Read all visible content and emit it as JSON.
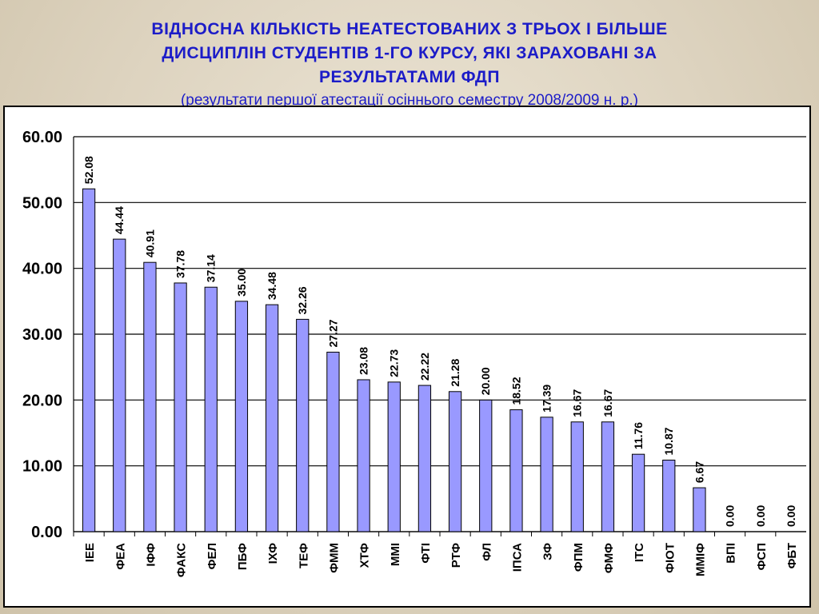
{
  "title": {
    "line1": "ВІДНОСНА  КІЛЬКІСТЬ  НЕАТЕСТОВАНИХ  З  ТРЬОХ  І  БІЛЬШЕ",
    "line2": "ДИСЦИПЛІН  СТУДЕНТІВ  1-ГО  КУРСУ,  ЯКІ  ЗАРАХОВАНІ  ЗА",
    "line3": "РЕЗУЛЬТАТАМИ  ФДП"
  },
  "subtitle": "(результати першої атестації осіннього семестру 2008/2009 н. р.)",
  "colors": {
    "title": "#1c1cc8",
    "bar_fill": "#9999ff",
    "bar_stroke": "#000000",
    "gridline": "#000000"
  },
  "chart_data": {
    "type": "bar",
    "categories": [
      "ІЕЕ",
      "ФЕА",
      "ІФФ",
      "ФАКС",
      "ФЕЛ",
      "ПБФ",
      "ІХФ",
      "ТЕФ",
      "ФММ",
      "ХТФ",
      "ММІ",
      "ФТІ",
      "РТФ",
      "ФЛ",
      "ІПСА",
      "ЗФ",
      "ФПМ",
      "ФМФ",
      "ІТС",
      "ФІОТ",
      "ММІФ",
      "ВПІ",
      "ФСП",
      "ФБТ"
    ],
    "values": [
      52.08,
      44.44,
      40.91,
      37.78,
      37.14,
      35.0,
      34.48,
      32.26,
      27.27,
      23.08,
      22.73,
      22.22,
      21.28,
      20.0,
      18.52,
      17.39,
      16.67,
      16.67,
      11.76,
      10.87,
      6.67,
      0.0,
      0.0,
      0.0
    ],
    "data_labels": [
      "52.08",
      "44.44",
      "40.91",
      "37.78",
      "37.14",
      "35.00",
      "34.48",
      "32.26",
      "27.27",
      "23.08",
      "22.73",
      "22.22",
      "21.28",
      "20.00",
      "18.52",
      "17.39",
      "16.67",
      "16.67",
      "11.76",
      "10.87",
      "6.67",
      "0.00",
      "0.00",
      "0.00"
    ],
    "yticks": [
      "0.00",
      "10.00",
      "20.00",
      "30.00",
      "40.00",
      "50.00",
      "60.00"
    ],
    "ylim": [
      0,
      60
    ],
    "grid": true,
    "legend": "none"
  }
}
